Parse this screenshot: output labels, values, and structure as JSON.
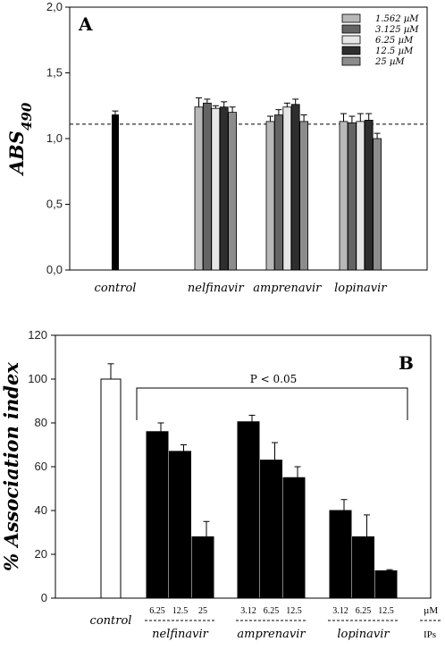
{
  "chart_data": [
    {
      "type": "bar",
      "panel": "A",
      "ylabel_main": "ABS",
      "ylabel_sub": "490",
      "ylim": [
        0.0,
        2.0
      ],
      "yticks": [
        "0,0",
        "0,5",
        "1,0",
        "1,5",
        "2,0"
      ],
      "reference_line": 1.11,
      "control": {
        "label": "control",
        "value": 1.18,
        "err": 0.03,
        "color": "#000000"
      },
      "categories": [
        "nelfinavir",
        "amprenavir",
        "lopinavir"
      ],
      "series": [
        {
          "name": "1.562 µM",
          "color": "#b8b8b8",
          "values": [
            1.24,
            1.13,
            1.13
          ],
          "err": [
            0.07,
            0.04,
            0.06
          ]
        },
        {
          "name": "3.125 µM",
          "color": "#646464",
          "values": [
            1.27,
            1.18,
            1.12
          ],
          "err": [
            0.03,
            0.04,
            0.05
          ]
        },
        {
          "name": "6.25 µM",
          "color": "#e6e6e6",
          "values": [
            1.23,
            1.24,
            1.13
          ],
          "err": [
            0.02,
            0.03,
            0.06
          ]
        },
        {
          "name": "12.5 µM",
          "color": "#2e2e2e",
          "values": [
            1.24,
            1.26,
            1.14
          ],
          "err": [
            0.04,
            0.04,
            0.05
          ]
        },
        {
          "name": "25 µM",
          "color": "#8c8c8c",
          "values": [
            1.2,
            1.13,
            1.0
          ],
          "err": [
            0.04,
            0.05,
            0.04
          ]
        }
      ]
    },
    {
      "type": "bar",
      "panel": "B",
      "ylabel": "% Association index",
      "ylim": [
        0,
        120
      ],
      "yticks": [
        "0",
        "20",
        "40",
        "60",
        "80",
        "100",
        "120"
      ],
      "annotation": "P < 0.05",
      "control": {
        "label": "control",
        "value": 100,
        "err": 7,
        "color": "#ffffff"
      },
      "unit_label": "µM",
      "ips_label": "IPs",
      "groups": [
        {
          "name": "nelfinavir",
          "doses": [
            "6.25",
            "12.5",
            "25"
          ],
          "values": [
            76,
            67,
            28
          ],
          "err": [
            4,
            3,
            7
          ]
        },
        {
          "name": "amprenavir",
          "doses": [
            "3.12",
            "6.25",
            "12.5"
          ],
          "values": [
            80.5,
            63,
            55
          ],
          "err": [
            3,
            8,
            5
          ]
        },
        {
          "name": "lopinavir",
          "doses": [
            "3.12",
            "6.25",
            "12.5"
          ],
          "values": [
            40,
            28,
            12.5
          ],
          "err": [
            5,
            10,
            0.5
          ]
        }
      ]
    }
  ]
}
